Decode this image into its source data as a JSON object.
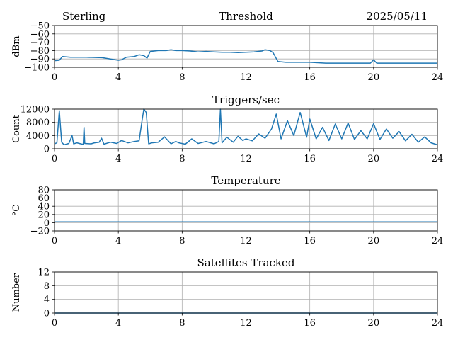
{
  "header": {
    "station": "Sterling",
    "date": "2025/05/11"
  },
  "colors": {
    "line": "#1f77b4",
    "grid": "#b0b0b0"
  },
  "chart_data": [
    {
      "type": "line",
      "title": "Threshold",
      "ylabel": "dBm",
      "xlim": [
        0,
        24
      ],
      "ylim": [
        -100,
        -50
      ],
      "xticks": [
        0,
        4,
        8,
        12,
        16,
        20,
        24
      ],
      "yticks": [
        -100,
        -90,
        -80,
        -70,
        -60,
        -50
      ],
      "grid": true,
      "series": [
        {
          "x": [
            0,
            0.3,
            0.5,
            1,
            2,
            3,
            3.5,
            4,
            4.2,
            4.5,
            5,
            5.3,
            5.6,
            5.8,
            6,
            6.5,
            7,
            7.3,
            7.6,
            8,
            8.5,
            9,
            9.5,
            10,
            10.5,
            11,
            11.5,
            12,
            12.5,
            13,
            13.2,
            13.5,
            13.7,
            14,
            14.5,
            15,
            16,
            17,
            18,
            19,
            19.8,
            20,
            20.2,
            21,
            22,
            23,
            24
          ],
          "y": [
            -92,
            -91.5,
            -87,
            -88,
            -88,
            -88.5,
            -90,
            -91.5,
            -91,
            -88,
            -87,
            -85,
            -86,
            -89,
            -81,
            -80,
            -80,
            -79,
            -80,
            -80,
            -80.5,
            -81.5,
            -81,
            -81.5,
            -82,
            -82,
            -82.5,
            -82,
            -81.5,
            -80.5,
            -79,
            -80,
            -82.5,
            -93,
            -94,
            -94,
            -94,
            -95,
            -95,
            -95,
            -95,
            -91,
            -95,
            -95,
            -95,
            -95,
            -95
          ]
        }
      ]
    },
    {
      "type": "line",
      "title": "Triggers/sec",
      "ylabel": "Count",
      "xlim": [
        0,
        24
      ],
      "ylim": [
        0,
        12000
      ],
      "xticks": [
        0,
        4,
        8,
        12,
        16,
        20,
        24
      ],
      "yticks": [
        0,
        4000,
        8000,
        12000
      ],
      "grid": true,
      "series": [
        {
          "x": [
            0,
            0.15,
            0.3,
            0.45,
            0.6,
            0.9,
            1.1,
            1.2,
            1.4,
            1.8,
            1.85,
            1.9,
            2.3,
            2.5,
            2.8,
            2.95,
            3.1,
            3.5,
            3.9,
            4.2,
            4.6,
            5,
            5.3,
            5.5,
            5.6,
            5.75,
            5.9,
            6.1,
            6.5,
            6.9,
            7.3,
            7.6,
            7.8,
            8.2,
            8.6,
            9,
            9.5,
            10,
            10.3,
            10.4,
            10.5,
            10.8,
            11.2,
            11.5,
            11.8,
            12,
            12.4,
            12.8,
            13.2,
            13.6,
            13.9,
            14.2,
            14.6,
            15,
            15.4,
            15.8,
            16,
            16.4,
            16.8,
            17.2,
            17.6,
            18,
            18.4,
            18.8,
            19.2,
            19.6,
            20,
            20.4,
            20.8,
            21.2,
            21.6,
            22,
            22.4,
            22.8,
            23.2,
            23.6,
            24
          ],
          "y": [
            1500,
            1800,
            11500,
            2000,
            1200,
            1600,
            4000,
            1500,
            1800,
            1300,
            6500,
            1600,
            1500,
            1800,
            2000,
            3200,
            1400,
            2000,
            1600,
            2500,
            1800,
            2200,
            2400,
            9000,
            12000,
            11000,
            1500,
            1800,
            2000,
            3600,
            1500,
            2200,
            1800,
            1400,
            3000,
            1600,
            2200,
            1500,
            2200,
            12000,
            1800,
            3500,
            2000,
            3800,
            2500,
            3000,
            2400,
            4500,
            3200,
            6000,
            10500,
            3000,
            8500,
            4000,
            11000,
            3500,
            9000,
            3000,
            6500,
            2500,
            7500,
            3000,
            7800,
            2800,
            5500,
            3000,
            7600,
            2800,
            6000,
            3200,
            5200,
            2400,
            4400,
            2000,
            3600,
            1800,
            1200
          ]
        }
      ]
    },
    {
      "type": "line",
      "title": "Temperature",
      "ylabel": "°C",
      "xlim": [
        0,
        24
      ],
      "ylim": [
        -20,
        80
      ],
      "xticks": [
        0,
        4,
        8,
        12,
        16,
        20,
        24
      ],
      "yticks": [
        -20,
        0,
        20,
        40,
        60,
        80
      ],
      "grid": true,
      "series": [
        {
          "x": [
            0,
            24
          ],
          "y": [
            2,
            2
          ]
        }
      ]
    },
    {
      "type": "line",
      "title": "Satellites Tracked",
      "ylabel": "Number",
      "xlim": [
        0,
        24
      ],
      "ylim": [
        0,
        12
      ],
      "xticks": [
        0,
        4,
        8,
        12,
        16,
        20,
        24
      ],
      "yticks": [
        0,
        4,
        8,
        12
      ],
      "grid": true,
      "series": [
        {
          "x": [
            0,
            24
          ],
          "y": [
            0,
            0
          ]
        }
      ]
    }
  ]
}
